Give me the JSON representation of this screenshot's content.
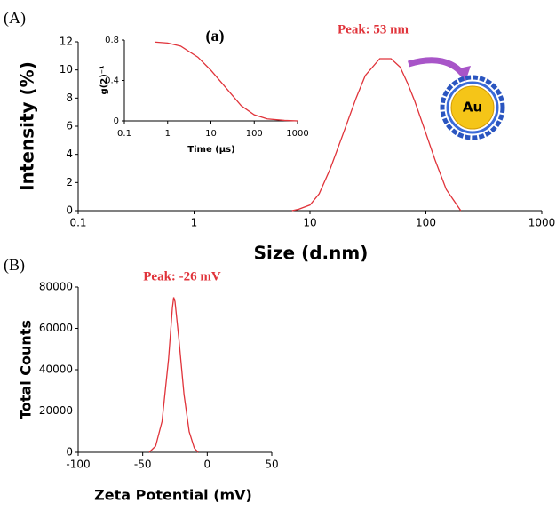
{
  "chart_data": [
    {
      "type": "line",
      "panel": "(A)",
      "x_label": "Size (d.nm)",
      "y_label": "Intensity (%)",
      "annotation": "Peak: 53 nm",
      "particle_label": "Au",
      "x_scale": "log",
      "xlim": [
        0.1,
        1000
      ],
      "xticks": [
        0.1,
        1,
        10,
        100,
        1000
      ],
      "ylim": [
        0,
        12
      ],
      "yticks": [
        0,
        2,
        4,
        6,
        8,
        10,
        12
      ],
      "series": [
        {
          "color": "#e0333a",
          "x": [
            7,
            8,
            10,
            12,
            15,
            20,
            25,
            30,
            40,
            50,
            60,
            70,
            80,
            100,
            120,
            150,
            200
          ],
          "values": [
            0,
            0.1,
            0.4,
            1.2,
            3,
            5.8,
            8,
            9.6,
            10.8,
            10.8,
            10.2,
            9,
            7.8,
            5.5,
            3.6,
            1.5,
            0
          ]
        }
      ]
    },
    {
      "type": "line",
      "title": "(a)",
      "x_label": "Time (μs)",
      "y_label": "g(2)⁻¹",
      "x_scale": "log",
      "xlim": [
        0.1,
        1000
      ],
      "xticks": [
        0.1,
        1,
        10,
        100,
        1000
      ],
      "ylim": [
        0,
        0.8
      ],
      "yticks": [
        0,
        0.4,
        0.8
      ],
      "series": [
        {
          "color": "#e0333a",
          "x": [
            0.5,
            1,
            2,
            5,
            10,
            20,
            50,
            100,
            200,
            500,
            1000
          ],
          "values": [
            0.78,
            0.77,
            0.74,
            0.63,
            0.5,
            0.35,
            0.15,
            0.06,
            0.02,
            0.005,
            0
          ]
        }
      ]
    },
    {
      "type": "line",
      "panel": "(B)",
      "x_label": "Zeta Potential (mV)",
      "y_label": "Total Counts",
      "annotation": "Peak: -26 mV",
      "xlim": [
        -100,
        50
      ],
      "xticks": [
        -100,
        -50,
        0,
        50
      ],
      "ylim": [
        0,
        80000
      ],
      "yticks": [
        0,
        20000,
        40000,
        60000,
        80000
      ],
      "series": [
        {
          "color": "#e0333a",
          "x": [
            -45,
            -40,
            -35,
            -30,
            -27,
            -26,
            -25,
            -22,
            -18,
            -14,
            -10,
            -7
          ],
          "values": [
            0,
            3000,
            15000,
            45000,
            70000,
            75000,
            73000,
            55000,
            28000,
            10000,
            2000,
            0
          ]
        }
      ]
    }
  ]
}
